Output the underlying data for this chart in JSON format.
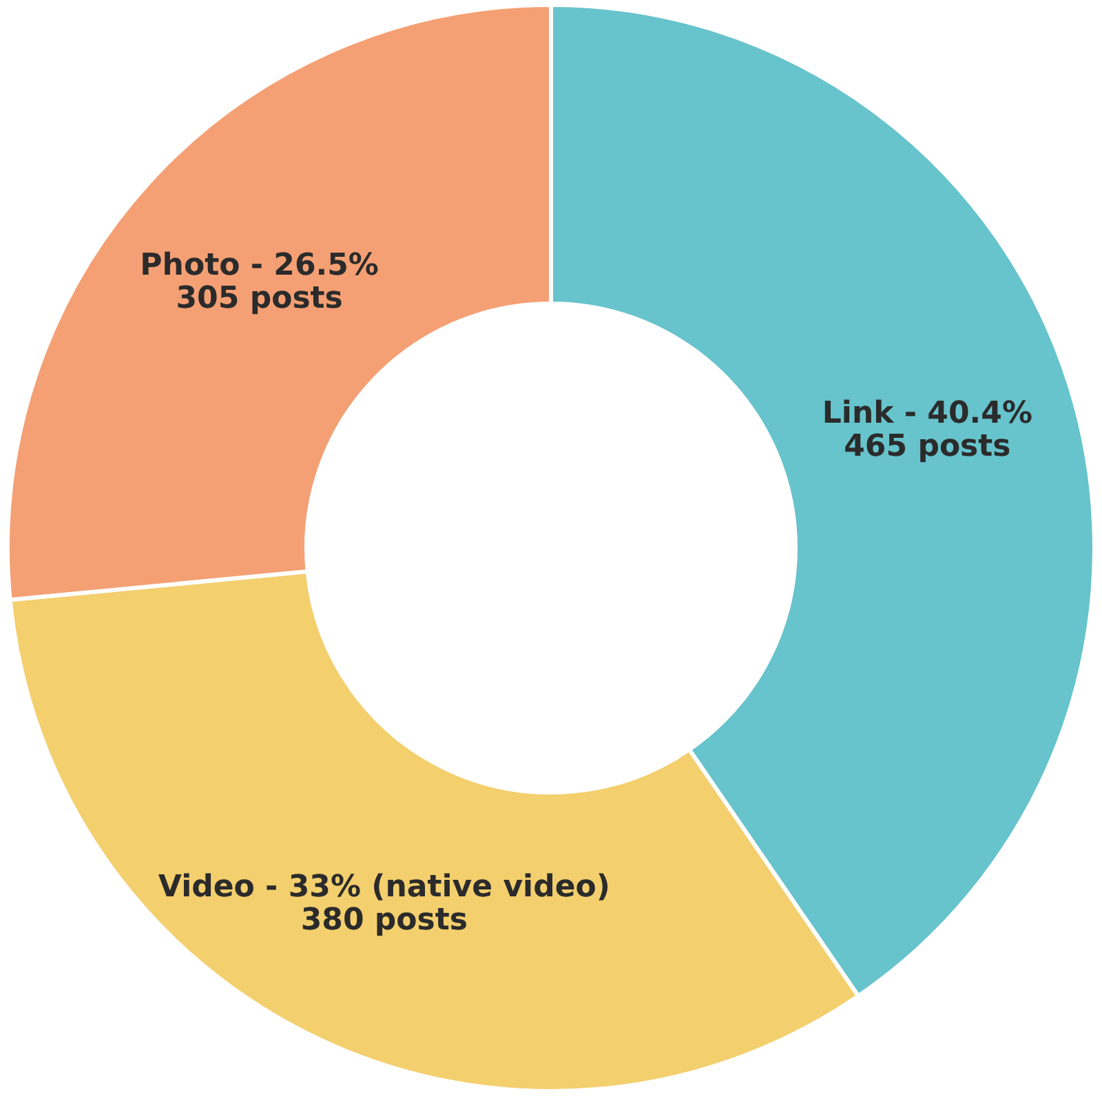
{
  "chart_data": {
    "type": "donut",
    "categories": [
      "Link - 40.4%",
      "Video - 33% (native video)",
      "Photo - 26.5%"
    ],
    "values": [
      465,
      380,
      305
    ],
    "value_labels": [
      "465 posts",
      "380 posts",
      "305 posts"
    ],
    "colors": [
      "#67c3cc",
      "#f3cf6e",
      "#f4a074"
    ],
    "legend": false
  }
}
